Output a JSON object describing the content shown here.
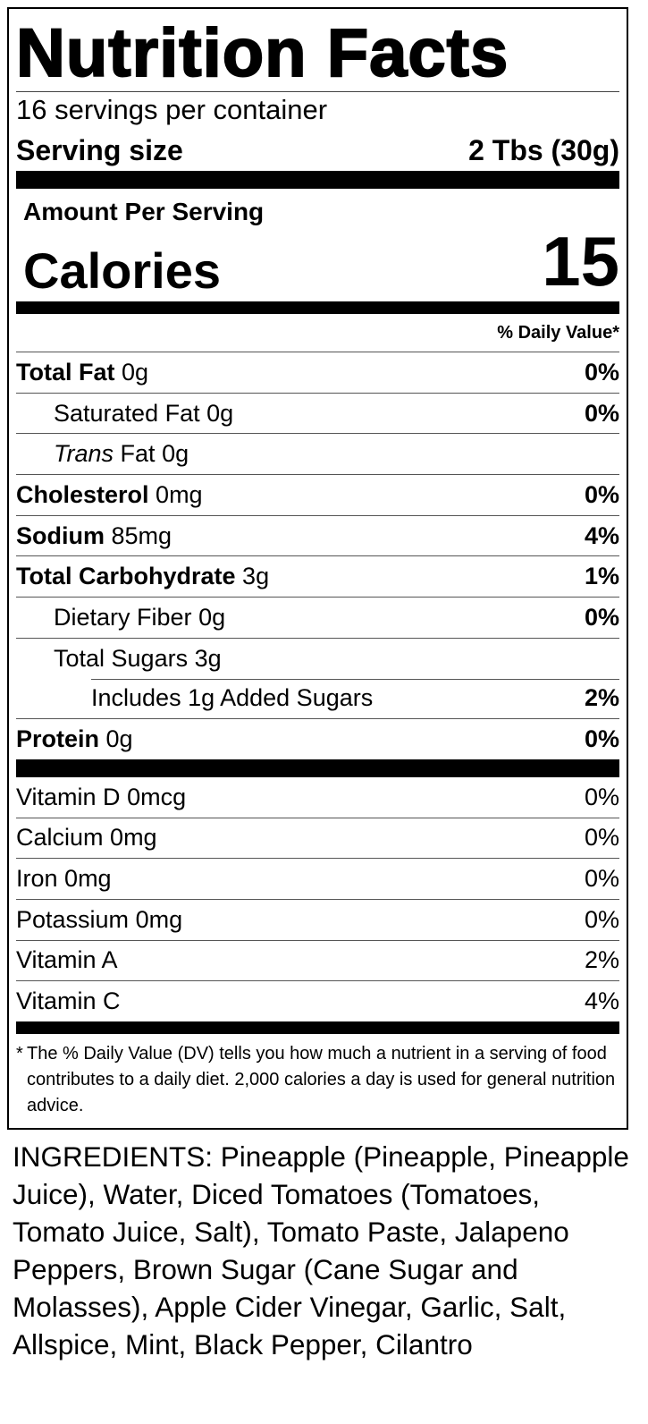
{
  "title": "Nutrition Facts",
  "servings": "16 servings per container",
  "serving_size": {
    "label": "Serving size",
    "value": "2 Tbs (30g)"
  },
  "amount_per_serving": "Amount Per Serving",
  "calories": {
    "label": "Calories",
    "value": "15"
  },
  "dv_header": "% Daily Value*",
  "nutrients": [
    {
      "name": "Total Fat",
      "amount": "0g",
      "dv": "0%",
      "bold": true,
      "indent": 0
    },
    {
      "name": "Saturated Fat",
      "amount": "0g",
      "dv": "0%",
      "bold": false,
      "indent": 1
    },
    {
      "italic": "Trans",
      "name": "Fat",
      "amount": "0g",
      "bold": false,
      "indent": 1
    },
    {
      "name": "Cholesterol",
      "amount": "0mg",
      "dv": "0%",
      "bold": true,
      "indent": 0
    },
    {
      "name": "Sodium",
      "amount": "85mg",
      "dv": "4%",
      "bold": true,
      "indent": 0
    },
    {
      "name": "Total Carbohydrate",
      "amount": "3g",
      "dv": "1%",
      "bold": true,
      "indent": 0
    },
    {
      "name": "Dietary Fiber",
      "amount": "0g",
      "dv": "0%",
      "bold": false,
      "indent": 1
    },
    {
      "name": "Total Sugars",
      "amount": "3g",
      "bold": false,
      "indent": 1
    },
    {
      "name": "Includes 1g Added Sugars",
      "dv": "2%",
      "bold": false,
      "indent": 2
    },
    {
      "name": "Protein",
      "amount": "0g",
      "dv": "0%",
      "bold": true,
      "indent": 0
    }
  ],
  "vitamins": [
    {
      "name": "Vitamin D",
      "amount": "0mcg",
      "dv": "0%"
    },
    {
      "name": "Calcium",
      "amount": "0mg",
      "dv": "0%"
    },
    {
      "name": "Iron",
      "amount": "0mg",
      "dv": "0%"
    },
    {
      "name": "Potassium",
      "amount": "0mg",
      "dv": "0%"
    },
    {
      "name": "Vitamin A",
      "dv": "2%"
    },
    {
      "name": "Vitamin C",
      "dv": "4%"
    }
  ],
  "footnote": {
    "mark": "*",
    "text": "The % Daily Value (DV) tells you how much a nutrient in a serving of food contributes to a daily diet. 2,000 calories a day is used for general nutrition advice."
  },
  "ingredients": "INGREDIENTS: Pineapple (Pineapple, Pineapple Juice), Water, Diced Tomatoes (Tomatoes, Tomato Juice, Salt), Tomato Paste, Jalapeno Peppers, Brown Sugar (Cane Sugar and Molasses), Apple Cider Vinegar, Garlic, Salt, Allspice, Mint, Black Pepper, Cilantro"
}
